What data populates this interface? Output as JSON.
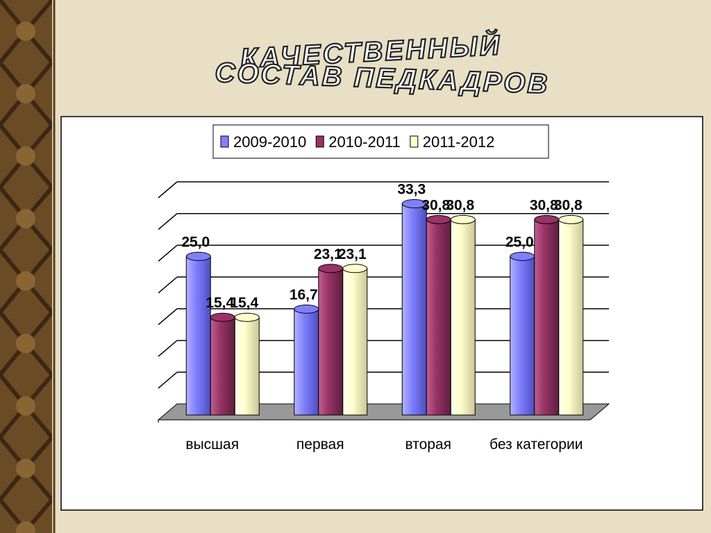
{
  "chart_data": {
    "type": "bar3d",
    "title": [
      "КАЧЕСТВЕННЫЙ",
      "СОСТАВ ПЕДКАДРОВ"
    ],
    "categories": [
      "высшая",
      "первая",
      "вторая",
      "без категории"
    ],
    "series": [
      {
        "name": "2009-2010",
        "color": "#8080ff",
        "values": [
          25.0,
          16.7,
          33.3,
          25.0
        ],
        "value_labels": [
          "25,0",
          "16,7",
          "33,3",
          "25,0"
        ]
      },
      {
        "name": "2010-2011",
        "color": "#993366",
        "values": [
          15.4,
          23.1,
          30.8,
          30.8
        ],
        "value_labels": [
          "15,4",
          "23,1",
          "30,8",
          "30,8"
        ]
      },
      {
        "name": "2011-2012",
        "color": "#ffffcc",
        "values": [
          15.4,
          23.1,
          30.8,
          30.8
        ],
        "value_labels": [
          "15,4",
          "23,1",
          "30,8",
          "30,8"
        ]
      }
    ],
    "ylim": [
      0,
      35
    ],
    "yticks": [
      0,
      5,
      10,
      15,
      20,
      25,
      30,
      35
    ],
    "grid": true,
    "legend": "top"
  }
}
